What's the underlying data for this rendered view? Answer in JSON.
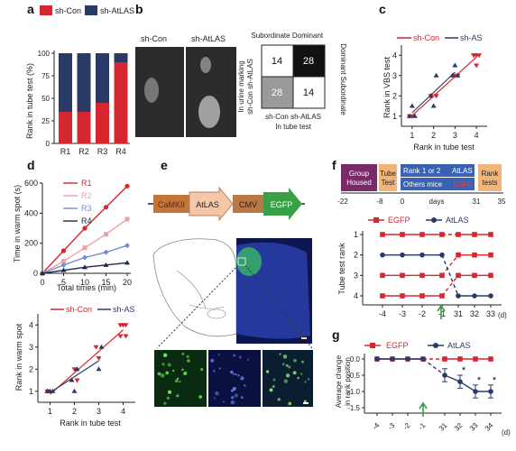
{
  "panels": {
    "a": "a",
    "b": "b",
    "c": "c",
    "d": "d",
    "e": "e",
    "f": "f",
    "g": "g"
  },
  "colors": {
    "red": "#d62630",
    "navy": "#2a3a66",
    "pink": "#eea0a6",
    "mid_blue": "#6f8fd6",
    "dark_navy": "#1d2a4a",
    "micro_green": "#3a9a48",
    "micro_blue": "#1a2a8a"
  },
  "panel_a": {
    "legend": [
      "sh-Con",
      "sh-AtLAS"
    ],
    "ylabel": "Rank in tube test (%)",
    "yticks": [
      "0",
      "25",
      "50",
      "75",
      "100"
    ]
  },
  "panel_b": {
    "image_labels": [
      "sh-Con",
      "sh-AtLAS"
    ],
    "matrix": {
      "col_headers": [
        "Subordinate",
        "Dominant"
      ],
      "right_label": "Dominant Subordinate",
      "left_label_line1": "In urine marking",
      "left_label_line2": "sh-Con sh-AtLAS",
      "bottom_headers": "sh-Con  sh-AtLAS",
      "bottom_label": "In tube test",
      "cells": [
        "14",
        "28",
        "28",
        "14"
      ]
    }
  },
  "panel_c": {
    "legend": [
      "sh-Con",
      "sh-AS"
    ],
    "ylabel": "Rank in VBS test",
    "xlabel": "Rank in tube test",
    "ticks": [
      "1",
      "2",
      "3",
      "4"
    ]
  },
  "panel_d": {
    "legend": [
      "R1",
      "R2",
      "R3",
      "R4"
    ],
    "ylabel": "Time in warm spot (s)",
    "xlabel": "Total times (min)",
    "yticks": [
      "0",
      "200",
      "400",
      "600"
    ],
    "xticks": [
      "0",
      "5",
      "10",
      "15",
      "20"
    ],
    "scatter": {
      "legend": [
        "sh-Con",
        "sh-AS"
      ],
      "ylabel": "Rank in warm spot",
      "xlabel": "Rank in tube test",
      "ticks": [
        "1",
        "2",
        "3",
        "4"
      ]
    }
  },
  "panel_e": {
    "construct": [
      "CaMKII",
      "AtLAS",
      "CMV",
      "EGFP"
    ]
  },
  "panel_f": {
    "timeline": {
      "group": "Group Housed",
      "tube": "Tube Test",
      "rank_line": "Rank 1 or 2",
      "atlas": "AtLAS",
      "others": "Others mice",
      "egfp": "EGFP",
      "rank_tests": "Rank tests",
      "days_label": "days",
      "ticks": [
        "-22",
        "-8",
        "0",
        "31",
        "35"
      ]
    },
    "legend": [
      "EGFP",
      "AtLAS"
    ],
    "ylabel": "Tube test rank",
    "yticks": [
      "1",
      "2",
      "3",
      "4"
    ],
    "xticks": [
      "-4",
      "-3",
      "-2",
      "-1",
      "31",
      "32",
      "33"
    ],
    "xunit": "(d)"
  },
  "panel_g": {
    "legend": [
      "EGFP",
      "AtLAS"
    ],
    "ylabel_line1": "Average change",
    "ylabel_line2": "in rank position",
    "yticks": [
      "0.0",
      "-0.5",
      "-1.0",
      "-1.5"
    ],
    "xticks": [
      "-4",
      "-3",
      "-2",
      "-1",
      "31",
      "32",
      "33",
      "34"
    ],
    "xunit": "(d)",
    "star": "*"
  },
  "chart_data": [
    {
      "id": "a",
      "type": "bar",
      "categories": [
        "R1",
        "R2",
        "R3",
        "R4"
      ],
      "series": [
        {
          "name": "sh-Con",
          "values": [
            35,
            35,
            45,
            90
          ]
        },
        {
          "name": "sh-AtLAS",
          "values": [
            65,
            65,
            55,
            10
          ]
        }
      ],
      "ylabel": "Rank in tube test (%)",
      "ylim": [
        0,
        100
      ],
      "stacked": true
    },
    {
      "id": "d-top",
      "type": "line",
      "x": [
        0,
        5,
        10,
        15,
        20
      ],
      "series": [
        {
          "name": "R1",
          "values": [
            0,
            150,
            300,
            440,
            580
          ]
        },
        {
          "name": "R2",
          "values": [
            0,
            80,
            170,
            260,
            360
          ]
        },
        {
          "name": "R3",
          "values": [
            0,
            55,
            105,
            140,
            185
          ]
        },
        {
          "name": "R4",
          "values": [
            0,
            20,
            40,
            55,
            70
          ]
        }
      ],
      "xlabel": "Total times (min)",
      "ylabel": "Time in warm spot (s)",
      "ylim": [
        0,
        600
      ],
      "xlim": [
        0,
        20
      ]
    },
    {
      "id": "c",
      "type": "scatter",
      "series": [
        {
          "name": "sh-Con",
          "x": [
            1,
            1,
            2,
            2,
            3,
            3,
            4,
            4,
            4,
            4,
            4
          ],
          "y": [
            1,
            1,
            2,
            2,
            3,
            3,
            4,
            4,
            4,
            4,
            3.5
          ]
        },
        {
          "name": "sh-AS",
          "x": [
            1,
            1,
            1,
            2,
            2,
            2,
            3,
            3,
            3
          ],
          "y": [
            1,
            1.5,
            1,
            2,
            1.5,
            3,
            3,
            3.5,
            3
          ]
        }
      ],
      "xlabel": "Rank in tube test",
      "ylabel": "Rank in VBS test",
      "xlim": [
        0.5,
        4.5
      ],
      "ylim": [
        0.5,
        4.5
      ]
    },
    {
      "id": "d-bottom",
      "type": "scatter",
      "series": [
        {
          "name": "sh-Con",
          "x": [
            1,
            2,
            2,
            3,
            3,
            4,
            4,
            4,
            4,
            4
          ],
          "y": [
            1,
            2,
            1.5,
            3,
            2.5,
            4,
            4,
            4,
            3.5,
            3.5
          ]
        },
        {
          "name": "sh-AS",
          "x": [
            1,
            1,
            1,
            1,
            2,
            2,
            2,
            3,
            3
          ],
          "y": [
            1,
            1,
            1,
            1,
            1,
            2,
            1.5,
            2,
            3
          ]
        }
      ],
      "xlabel": "Rank in tube test",
      "ylabel": "Rank in warm spot",
      "xlim": [
        0.5,
        4.5
      ],
      "ylim": [
        0.5,
        4.5
      ]
    },
    {
      "id": "f",
      "type": "line",
      "x": [
        "-4",
        "-3",
        "-2",
        "-1",
        "31",
        "32",
        "33"
      ],
      "series": [
        {
          "name": "EGFP",
          "values": [
            1,
            1,
            1,
            1,
            1,
            1,
            1
          ]
        },
        {
          "name": "EGFP",
          "values": [
            3,
            3,
            3,
            3,
            2,
            2,
            2
          ]
        },
        {
          "name": "EGFP",
          "values": [
            4,
            4,
            4,
            4,
            3,
            3,
            3
          ]
        },
        {
          "name": "AtLAS",
          "values": [
            2,
            2,
            2,
            2,
            4,
            4,
            4
          ]
        }
      ],
      "ylabel": "Tube test rank",
      "ylim": [
        0.5,
        4.5
      ]
    },
    {
      "id": "g",
      "type": "line",
      "x": [
        "-4",
        "-3",
        "-2",
        "-1",
        "31",
        "32",
        "33",
        "34"
      ],
      "series": [
        {
          "name": "EGFP",
          "values": [
            0,
            0,
            0,
            0,
            0,
            0,
            0,
            0
          ],
          "err": [
            0,
            0,
            0,
            0,
            0,
            0,
            0,
            0
          ]
        },
        {
          "name": "AtLAS",
          "values": [
            0,
            0,
            0,
            0,
            -0.5,
            -0.7,
            -1.0,
            -1.0
          ],
          "err": [
            0,
            0,
            0,
            0,
            0.2,
            0.2,
            0.2,
            0.2
          ]
        }
      ],
      "ylabel": "Average change in rank position",
      "ylim": [
        -1.5,
        0.2
      ]
    }
  ]
}
